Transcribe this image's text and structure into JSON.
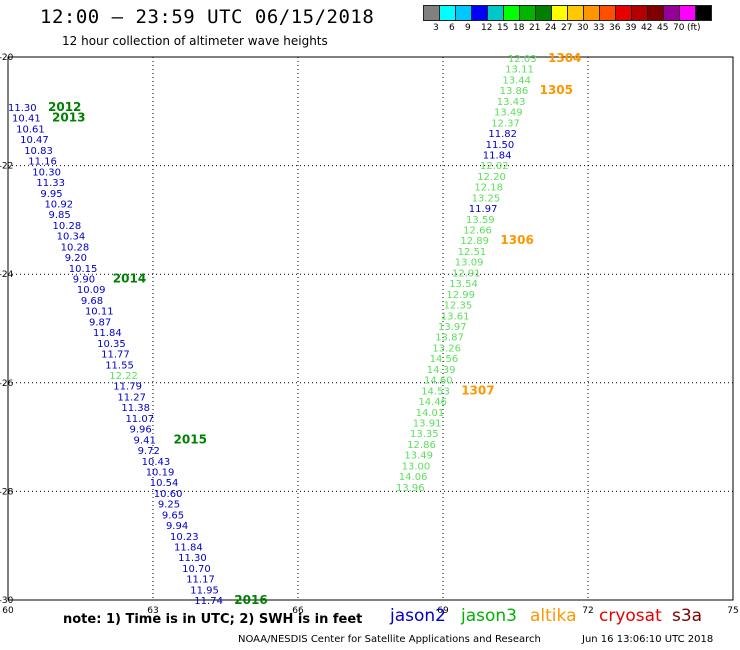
{
  "header": {
    "title": "12:00 – 23:59 UTC 06/15/2018",
    "subtitle": "12 hour collection of altimeter wave heights"
  },
  "color_scale": {
    "swatches": [
      "#808080",
      "#00ffff",
      "#00c8ff",
      "#0000ff",
      "#00c8c8",
      "#00ff00",
      "#00b400",
      "#008000",
      "#ffff00",
      "#ffc800",
      "#ff9600",
      "#ff5000",
      "#e60000",
      "#b40000",
      "#800000",
      "#960096",
      "#ff00ff",
      "#000000"
    ],
    "labels": [
      "3",
      "6",
      "9",
      "12",
      "15",
      "18",
      "21",
      "24",
      "27",
      "30",
      "33",
      "36",
      "39",
      "42",
      "45",
      "70",
      "(ft)"
    ]
  },
  "map": {
    "x_ticks": [
      "60",
      "63",
      "66",
      "69",
      "72",
      "75"
    ],
    "y_ticks": [
      "-20",
      "-22",
      "-24",
      "-26",
      "-28",
      "-30"
    ],
    "x_range": [
      60,
      75
    ],
    "y_range": [
      -30,
      -20
    ]
  },
  "observations": {
    "track_a": [
      {
        "v": "11.30",
        "c": "#0000c8"
      },
      {
        "v": "10.41",
        "c": "#0000c8"
      },
      {
        "v": "10.61",
        "c": "#0000c8"
      },
      {
        "v": "10.47",
        "c": "#0000c8"
      },
      {
        "v": "10.83",
        "c": "#0000c8"
      },
      {
        "v": "11.16",
        "c": "#0000c8"
      },
      {
        "v": "10.30",
        "c": "#0000c8"
      },
      {
        "v": "11.33",
        "c": "#0000c8"
      },
      {
        "v": "9.95",
        "c": "#0000c8"
      },
      {
        "v": "10.92",
        "c": "#0000c8"
      },
      {
        "v": "9.85",
        "c": "#0000c8"
      },
      {
        "v": "10.28",
        "c": "#0000c8"
      },
      {
        "v": "10.34",
        "c": "#0000c8"
      },
      {
        "v": "10.28",
        "c": "#0000c8"
      },
      {
        "v": "9.20",
        "c": "#0000c8"
      },
      {
        "v": "10.15",
        "c": "#0000c8"
      },
      {
        "v": "9.90",
        "c": "#0000c8"
      },
      {
        "v": "10.09",
        "c": "#0000c8"
      },
      {
        "v": "9.68",
        "c": "#0000c8"
      },
      {
        "v": "10.11",
        "c": "#0000c8"
      },
      {
        "v": "9.87",
        "c": "#0000c8"
      },
      {
        "v": "11.84",
        "c": "#0000c8"
      },
      {
        "v": "10.35",
        "c": "#0000c8"
      },
      {
        "v": "11.77",
        "c": "#0000c8"
      },
      {
        "v": "11.55",
        "c": "#0000c8"
      },
      {
        "v": "12.22",
        "c": "#5ce05c"
      },
      {
        "v": "11.79",
        "c": "#0000c8"
      },
      {
        "v": "11.27",
        "c": "#0000c8"
      },
      {
        "v": "11.38",
        "c": "#0000c8"
      },
      {
        "v": "11.07",
        "c": "#0000c8"
      },
      {
        "v": "9.96",
        "c": "#0000c8"
      },
      {
        "v": "9.41",
        "c": "#0000c8"
      },
      {
        "v": "9.72",
        "c": "#0000c8"
      },
      {
        "v": "10.43",
        "c": "#0000c8"
      },
      {
        "v": "10.19",
        "c": "#0000c8"
      },
      {
        "v": "10.54",
        "c": "#0000c8"
      },
      {
        "v": "10.60",
        "c": "#0000c8"
      },
      {
        "v": "9.25",
        "c": "#0000c8"
      },
      {
        "v": "9.65",
        "c": "#0000c8"
      },
      {
        "v": "9.94",
        "c": "#0000c8"
      },
      {
        "v": "10.23",
        "c": "#0000c8"
      },
      {
        "v": "11.84",
        "c": "#0000c8"
      },
      {
        "v": "11.30",
        "c": "#0000c8"
      },
      {
        "v": "10.70",
        "c": "#0000c8"
      },
      {
        "v": "11.17",
        "c": "#0000c8"
      },
      {
        "v": "11.95",
        "c": "#0000c8"
      },
      {
        "v": "11.74",
        "c": "#0000c8"
      }
    ],
    "track_a_times": [
      {
        "label": "2012",
        "row": 0
      },
      {
        "label": "2013",
        "row": 1
      },
      {
        "label": "2014",
        "row": 16
      },
      {
        "label": "2015",
        "row": 31
      },
      {
        "label": "2016",
        "row": 46
      }
    ],
    "track_b": [
      {
        "v": "12.03",
        "c": "#5ce05c"
      },
      {
        "v": "13.11",
        "c": "#5ce05c"
      },
      {
        "v": "13.44",
        "c": "#5ce05c"
      },
      {
        "v": "13.86",
        "c": "#5ce05c"
      },
      {
        "v": "13.43",
        "c": "#5ce05c"
      },
      {
        "v": "13.49",
        "c": "#5ce05c"
      },
      {
        "v": "12.37",
        "c": "#5ce05c"
      },
      {
        "v": "11.82",
        "c": "#0000c8"
      },
      {
        "v": "11.50",
        "c": "#0000c8"
      },
      {
        "v": "11.84",
        "c": "#0000c8"
      },
      {
        "v": "12.02",
        "c": "#5ce05c"
      },
      {
        "v": "12.20",
        "c": "#5ce05c"
      },
      {
        "v": "12.18",
        "c": "#5ce05c"
      },
      {
        "v": "13.25",
        "c": "#5ce05c"
      },
      {
        "v": "11.97",
        "c": "#0000c8"
      },
      {
        "v": "13.59",
        "c": "#5ce05c"
      },
      {
        "v": "12.66",
        "c": "#5ce05c"
      },
      {
        "v": "12.89",
        "c": "#5ce05c"
      },
      {
        "v": "12.51",
        "c": "#5ce05c"
      },
      {
        "v": "13.09",
        "c": "#5ce05c"
      },
      {
        "v": "12.91",
        "c": "#5ce05c"
      },
      {
        "v": "13.54",
        "c": "#5ce05c"
      },
      {
        "v": "12.99",
        "c": "#5ce05c"
      },
      {
        "v": "12.35",
        "c": "#5ce05c"
      },
      {
        "v": "13.61",
        "c": "#5ce05c"
      },
      {
        "v": "13.97",
        "c": "#5ce05c"
      },
      {
        "v": "13.87",
        "c": "#5ce05c"
      },
      {
        "v": "13.26",
        "c": "#5ce05c"
      },
      {
        "v": "14.56",
        "c": "#5ce05c"
      },
      {
        "v": "14.39",
        "c": "#5ce05c"
      },
      {
        "v": "14.60",
        "c": "#5ce05c"
      },
      {
        "v": "14.53",
        "c": "#5ce05c"
      },
      {
        "v": "14.46",
        "c": "#5ce05c"
      },
      {
        "v": "14.01",
        "c": "#5ce05c"
      },
      {
        "v": "13.91",
        "c": "#5ce05c"
      },
      {
        "v": "13.35",
        "c": "#5ce05c"
      },
      {
        "v": "12.86",
        "c": "#5ce05c"
      },
      {
        "v": "13.49",
        "c": "#5ce05c"
      },
      {
        "v": "13.00",
        "c": "#5ce05c"
      },
      {
        "v": "14.06",
        "c": "#5ce05c"
      },
      {
        "v": "13.96",
        "c": "#5ce05c"
      }
    ],
    "track_b_times": [
      {
        "label": "1304",
        "row": 0
      },
      {
        "label": "1305",
        "row": 3
      },
      {
        "label": "1306",
        "row": 17
      },
      {
        "label": "1307",
        "row": 31
      }
    ]
  },
  "legend": {
    "note": "note:  1) Time is in UTC; 2) SWH is in feet",
    "satellites": [
      {
        "name": "jason2",
        "color": "#0000c8"
      },
      {
        "name": "jason3",
        "color": "#00b400"
      },
      {
        "name": "altika",
        "color": "#ff9600"
      },
      {
        "name": "cryosat",
        "color": "#e60000"
      },
      {
        "name": "s3a",
        "color": "#800000"
      }
    ],
    "credit": "NOAA/NESDIS Center for Satellite Applications and Research",
    "timestamp": "Jun 16 13:06:10 UTC 2018"
  }
}
